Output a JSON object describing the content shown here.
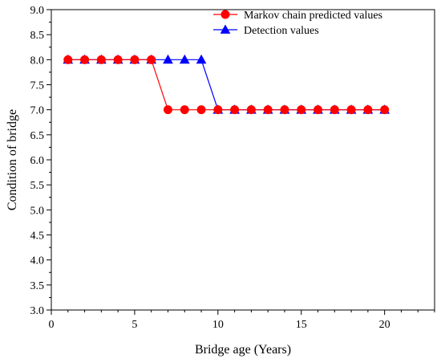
{
  "chart_data": {
    "type": "line",
    "xlabel": "Bridge age (Years)",
    "ylabel": "Condition of bridge",
    "xlim": [
      0,
      23
    ],
    "ylim": [
      3.0,
      9.0
    ],
    "x_ticks": [
      "0",
      "5",
      "10",
      "15",
      "20"
    ],
    "y_ticks": [
      "3.0",
      "3.5",
      "4.0",
      "4.5",
      "5.0",
      "5.5",
      "6.0",
      "6.5",
      "7.0",
      "7.5",
      "8.0",
      "8.5",
      "9.0"
    ],
    "legend_position": "top-right",
    "grid": false,
    "series": [
      {
        "name": "Markov chain predicted values",
        "color": "#ff0000",
        "marker": "circle",
        "x": [
          1,
          2,
          3,
          4,
          5,
          6,
          7,
          8,
          9,
          10,
          11,
          12,
          13,
          14,
          15,
          16,
          17,
          18,
          19,
          20
        ],
        "y": [
          8,
          8,
          8,
          8,
          8,
          8,
          7,
          7,
          7,
          7,
          7,
          7,
          7,
          7,
          7,
          7,
          7,
          7,
          7,
          7
        ]
      },
      {
        "name": "Detection values",
        "color": "#0000ff",
        "marker": "triangle",
        "x": [
          1,
          2,
          3,
          4,
          5,
          6,
          7,
          8,
          9,
          10,
          11,
          12,
          13,
          14,
          15,
          16,
          17,
          18,
          19,
          20
        ],
        "y": [
          8,
          8,
          8,
          8,
          8,
          8,
          8,
          8,
          8,
          7,
          7,
          7,
          7,
          7,
          7,
          7,
          7,
          7,
          7,
          7
        ]
      }
    ]
  }
}
